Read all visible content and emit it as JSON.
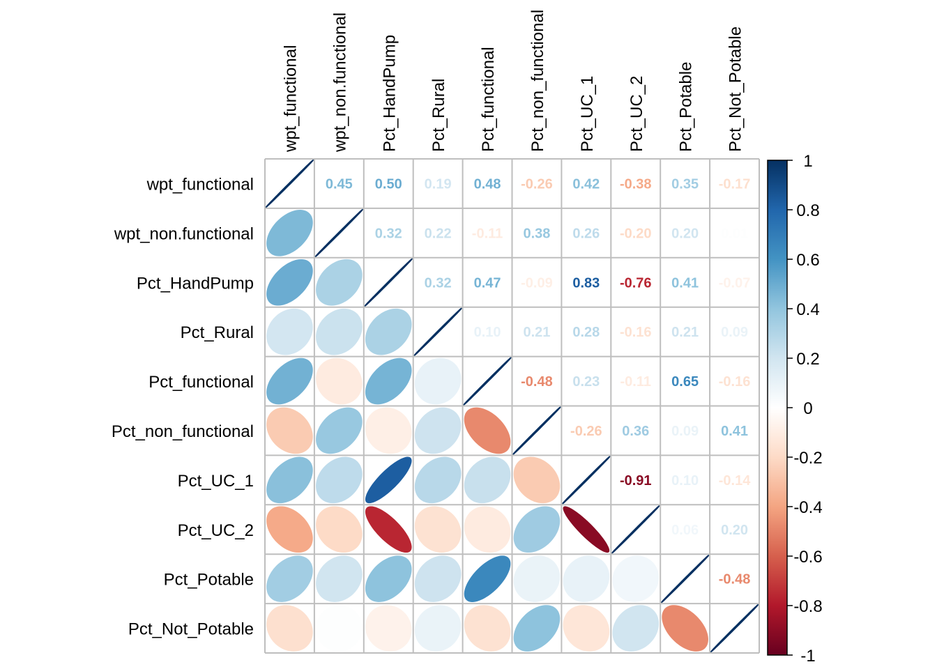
{
  "chart_data": {
    "type": "heatmap",
    "title": "",
    "method": "mixed: ellipse (lower), number (upper)",
    "variables": [
      "wpt_functional",
      "wpt_non.functional",
      "Pct_HandPump",
      "Pct_Rural",
      "Pct_functional",
      "Pct_non_functional",
      "Pct_UC_1",
      "Pct_UC_2",
      "Pct_Potable",
      "Pct_Not_Potable"
    ],
    "matrix": [
      [
        1.0,
        0.45,
        0.5,
        0.19,
        0.48,
        -0.26,
        0.42,
        -0.38,
        0.35,
        -0.17
      ],
      [
        0.45,
        1.0,
        0.32,
        0.22,
        -0.11,
        0.38,
        0.26,
        -0.2,
        0.2,
        0.01
      ],
      [
        0.5,
        0.32,
        1.0,
        0.32,
        0.47,
        -0.09,
        0.83,
        -0.76,
        0.41,
        -0.07
      ],
      [
        0.19,
        0.22,
        0.32,
        1.0,
        0.1,
        0.21,
        0.28,
        -0.16,
        0.21,
        0.09
      ],
      [
        0.48,
        -0.11,
        0.47,
        0.1,
        1.0,
        -0.48,
        0.23,
        -0.11,
        0.65,
        -0.16
      ],
      [
        -0.26,
        0.38,
        -0.09,
        0.21,
        -0.48,
        1.0,
        -0.26,
        0.36,
        0.09,
        0.41
      ],
      [
        0.42,
        0.26,
        0.83,
        0.28,
        0.23,
        -0.26,
        1.0,
        -0.91,
        0.1,
        -0.14
      ],
      [
        -0.38,
        -0.2,
        -0.76,
        -0.16,
        -0.11,
        0.36,
        -0.91,
        1.0,
        0.06,
        0.2
      ],
      [
        0.35,
        0.2,
        0.41,
        0.21,
        0.65,
        0.09,
        0.1,
        0.06,
        1.0,
        -0.48
      ],
      [
        -0.17,
        0.01,
        -0.07,
        0.09,
        -0.16,
        0.41,
        -0.14,
        0.2,
        -0.48,
        1.0
      ]
    ],
    "colorbar": {
      "range": [
        -1,
        1
      ],
      "ticks": [
        "1",
        "0.8",
        "0.6",
        "0.4",
        "0.2",
        "0",
        "-0.2",
        "-0.4",
        "-0.6",
        "-0.8",
        "-1"
      ],
      "palette": [
        "#67001F",
        "#B2182B",
        "#D6604D",
        "#F4A582",
        "#FDDBC7",
        "#FFFFFF",
        "#D1E5F0",
        "#92C5DE",
        "#4393C3",
        "#2166AC",
        "#053061"
      ],
      "placement": "right"
    },
    "grid": true,
    "grid_color": "#BEBEBE",
    "diagonal_line_color": "#053061"
  }
}
